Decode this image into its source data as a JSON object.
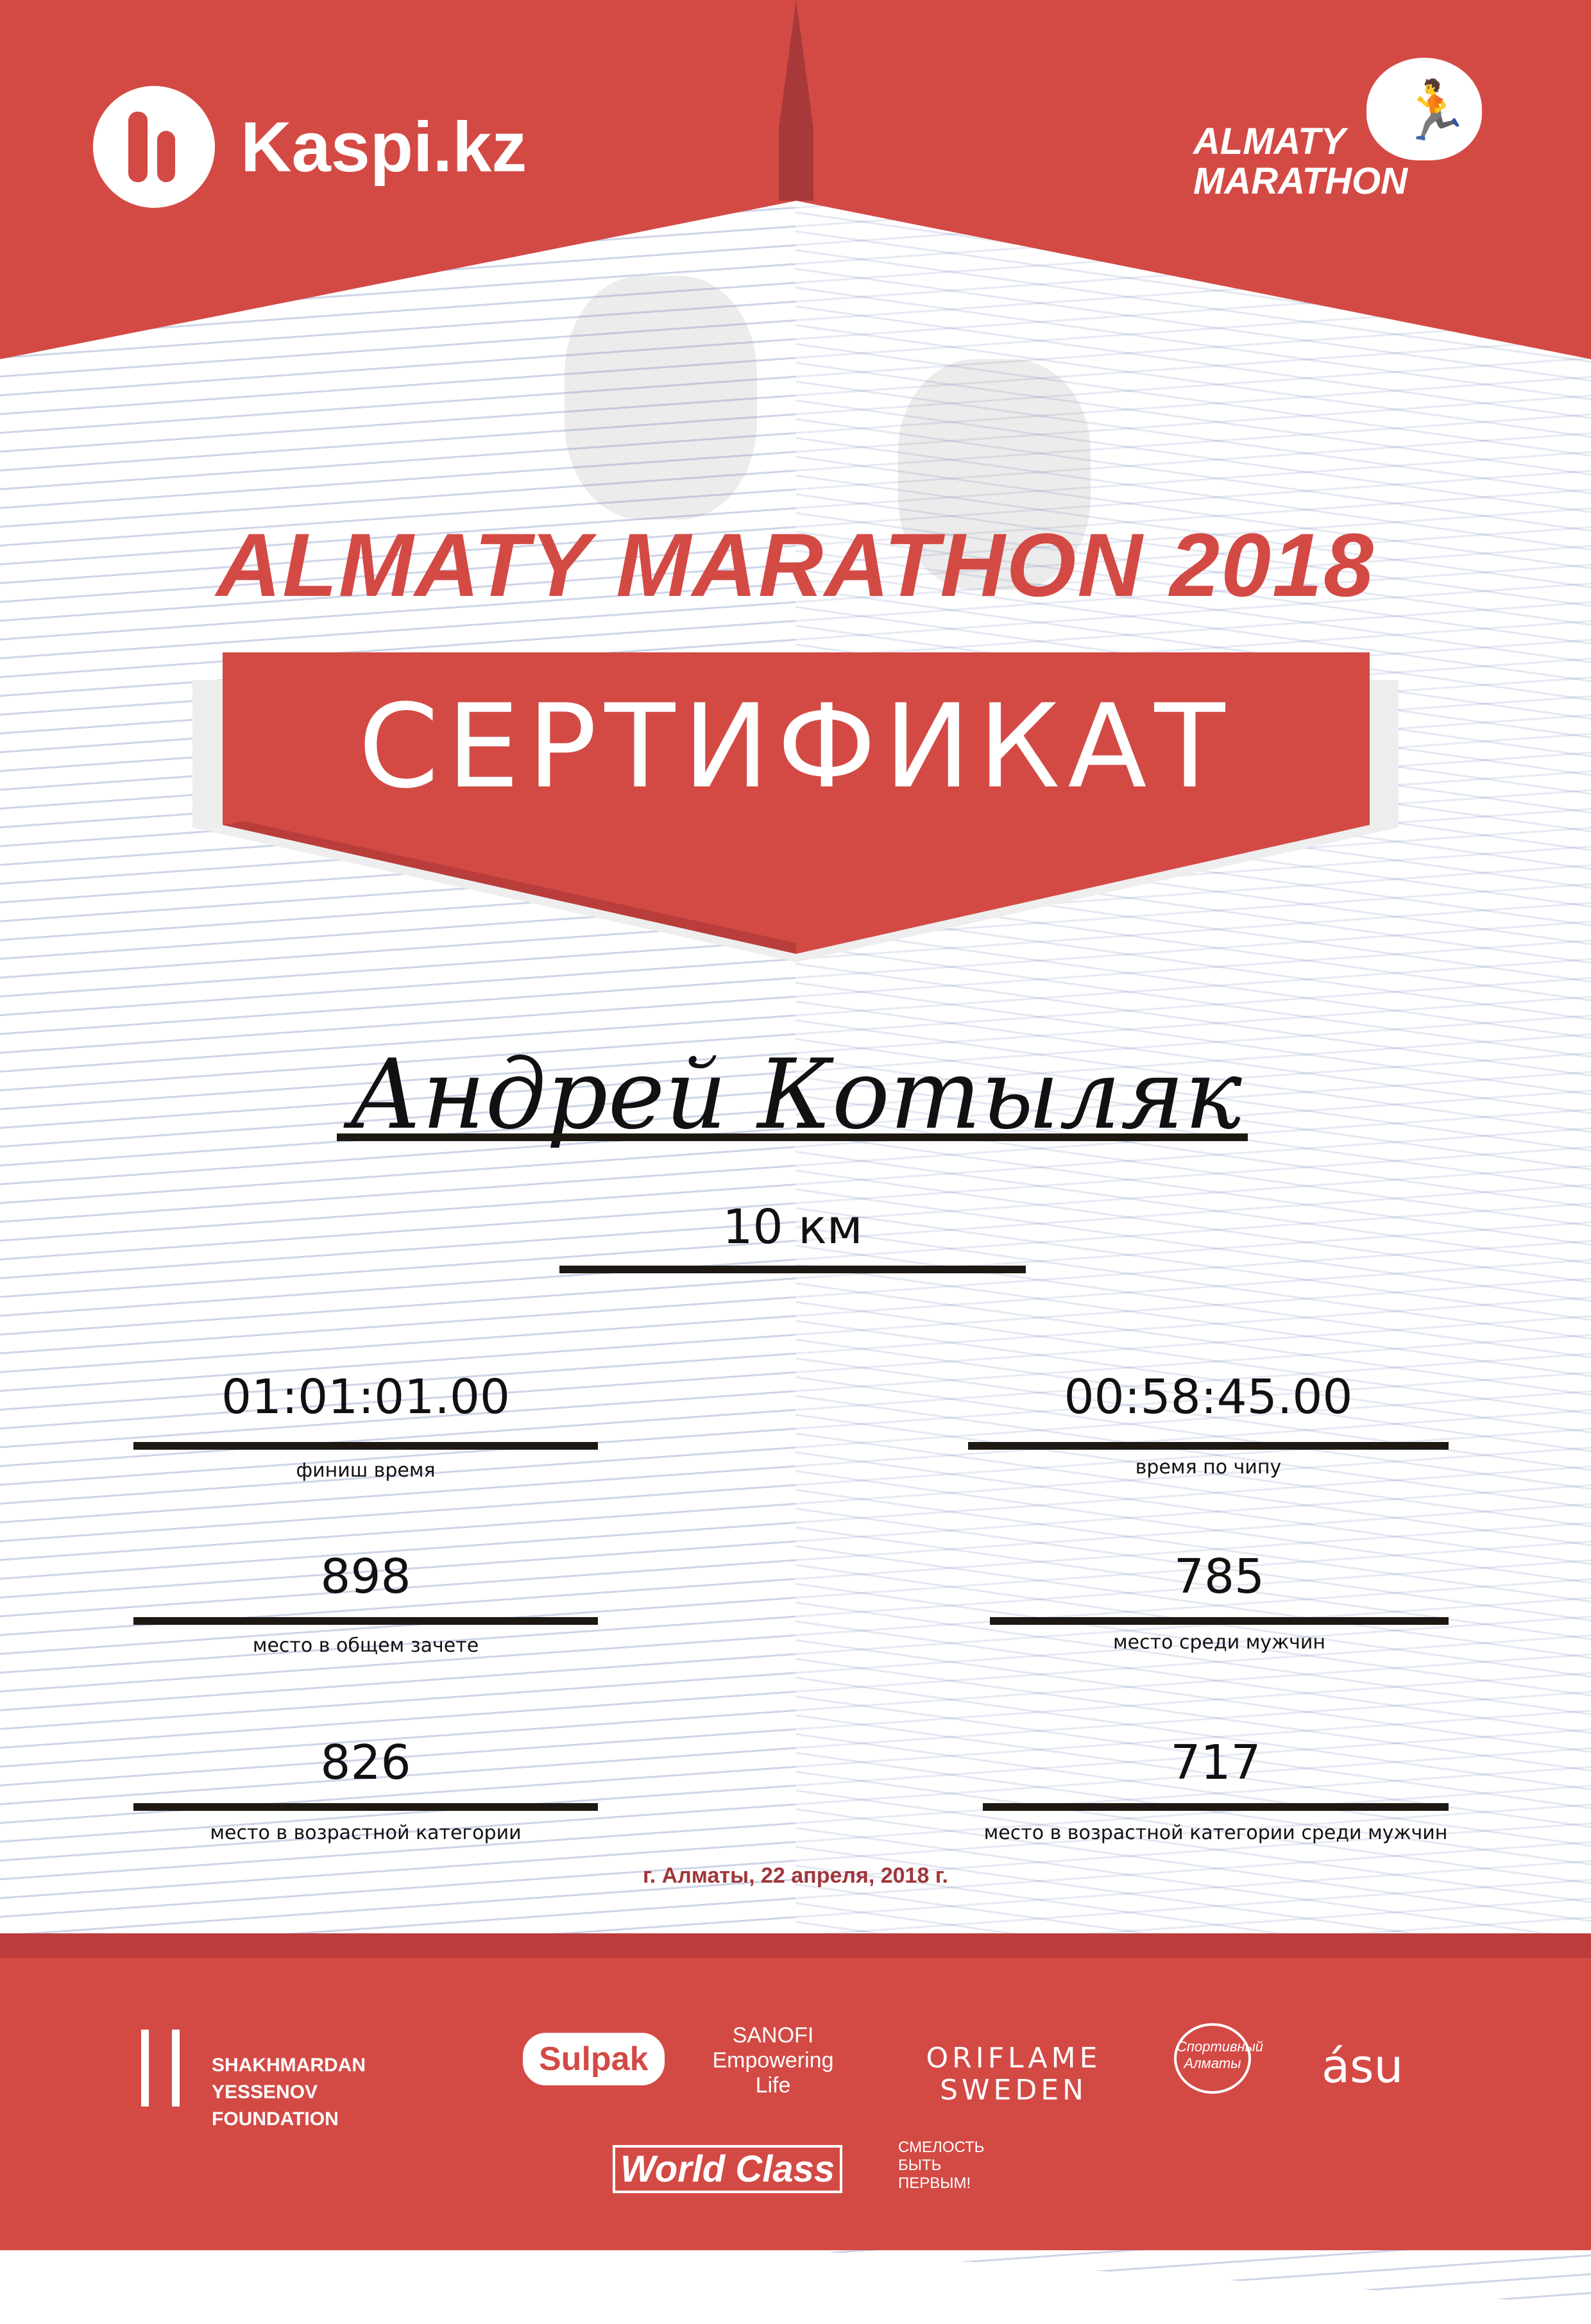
{
  "header": {
    "sponsor_logo": "Kaspi.kz",
    "event_logo_line1": "ALMATY",
    "event_logo_line2": "MARATHON"
  },
  "title": "ALMATY MARATHON 2018",
  "certificate_label": "СЕРТИФИКАТ",
  "participant": {
    "name": "Андрей Котыляк",
    "distance": "10 км"
  },
  "results": {
    "finish_time": {
      "value": "01:01:01.00",
      "label": "финиш время"
    },
    "chip_time": {
      "value": "00:58:45.00",
      "label": "время по чипу"
    },
    "overall_place": {
      "value": "898",
      "label": "место в общем зачете"
    },
    "gender_place": {
      "value": "785",
      "label": "место среди мужчин"
    },
    "age_place": {
      "value": "826",
      "label": "место в возрастной категории"
    },
    "age_gender_place": {
      "value": "717",
      "label": "место в возрастной категории среди мужчин"
    }
  },
  "date_line": "г. Алматы, 22 апреля, 2018 г.",
  "partners": [
    "SHAKHMARDAN YESSENOV FOUNDATION",
    "Sulpak",
    "SANOFI Empowering Life",
    "ORIFLAME SWEDEN",
    "Спортивный Алматы",
    "ásu",
    "World Class",
    "СМЕЛОСТЬ БЫТЬ ПЕРВЫМ!"
  ],
  "colors": {
    "brand_red": "#d34a45",
    "dark_red": "#a0363a",
    "line_blue": "#c9d0e6"
  }
}
